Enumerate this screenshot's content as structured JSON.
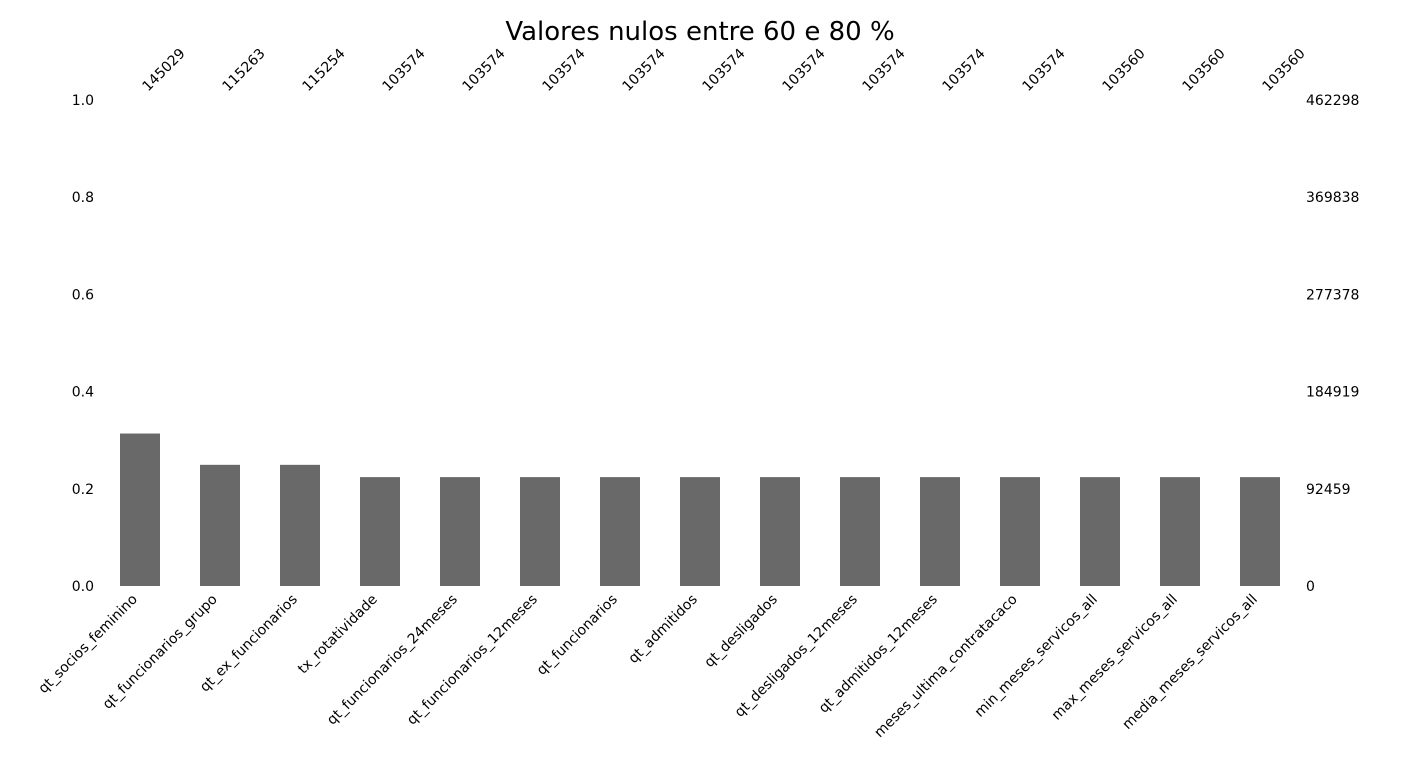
{
  "chart_data": {
    "type": "bar",
    "title": "Valores nulos entre 60 e 80 %",
    "xlabel": "",
    "ylabel": "",
    "ylim": [
      0,
      1
    ],
    "grid": false,
    "bar_color": "#696969",
    "categories": [
      "qt_socios_feminino",
      "qt_funcionarios_grupo",
      "qt_ex_funcionarios",
      "tx_rotatividade",
      "qt_funcionarios_24meses",
      "qt_funcionarios_12meses",
      "qt_funcionarios",
      "qt_admitidos",
      "qt_desligados",
      "qt_desligados_12meses",
      "qt_admitidos_12meses",
      "meses_ultima_contratacaco",
      "min_meses_servicos_all",
      "max_meses_servicos_all",
      "media_meses_servicos_all"
    ],
    "values": [
      145029,
      115263,
      115254,
      103574,
      103574,
      103574,
      103574,
      103574,
      103574,
      103574,
      103574,
      103574,
      103560,
      103560,
      103560
    ],
    "count_labels": [
      "145029",
      "115263",
      "115254",
      "103574",
      "103574",
      "103574",
      "103574",
      "103574",
      "103574",
      "103574",
      "103574",
      "103574",
      "103560",
      "103560",
      "103560"
    ],
    "total": 462298,
    "left_ticks": [
      "0.0",
      "0.2",
      "0.4",
      "0.6",
      "0.8",
      "1.0"
    ],
    "left_tick_values": [
      0,
      0.2,
      0.4,
      0.6,
      0.8,
      1.0
    ],
    "right_ticks": [
      "0",
      "92459",
      "184919",
      "277378",
      "369838",
      "462298"
    ]
  }
}
